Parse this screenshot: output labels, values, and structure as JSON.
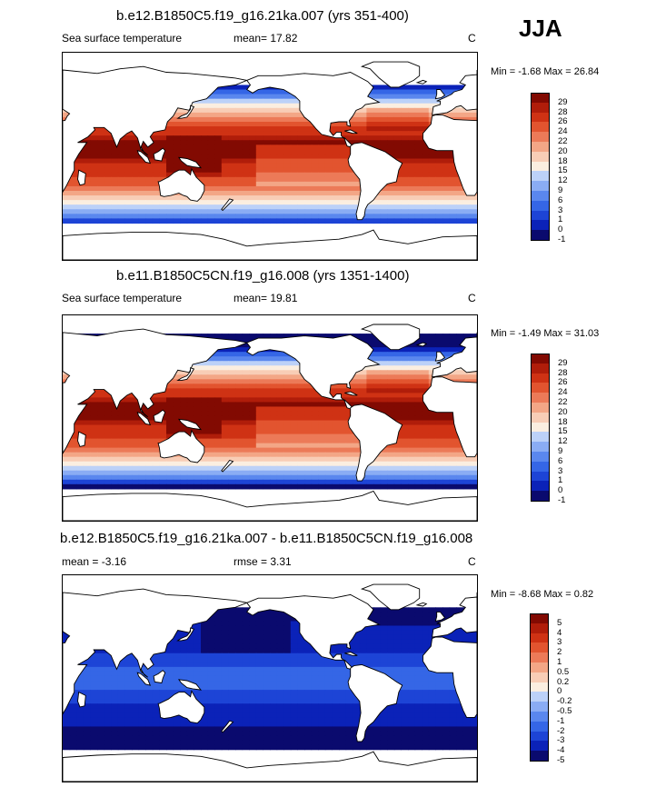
{
  "season": "JJA",
  "panels": [
    {
      "title": "b.e12.B1850C5.f19_g16.21ka.007 (yrs 351-400)",
      "left_label": "Sea surface temperature",
      "stat_label": "mean=  17.82",
      "units": "C",
      "minmax": "Min =  -1.68 Max =  26.84",
      "scale": "abs",
      "colorbar_labels": [
        "29",
        "28",
        "26",
        "24",
        "22",
        "20",
        "18",
        "15",
        "12",
        "9",
        "6",
        "3",
        "1",
        "0",
        "-1"
      ]
    },
    {
      "title": "b.e11.B1850C5CN.f19_g16.008 (yrs 1351-1400)",
      "left_label": "Sea surface temperature",
      "stat_label": "mean=  19.81",
      "units": "C",
      "minmax": "Min =  -1.49 Max =  31.03",
      "scale": "abs",
      "colorbar_labels": [
        "29",
        "28",
        "26",
        "24",
        "22",
        "20",
        "18",
        "15",
        "12",
        "9",
        "6",
        "3",
        "1",
        "0",
        "-1"
      ]
    },
    {
      "title": "b.e12.B1850C5.f19_g16.21ka.007 - b.e11.B1850C5CN.f19_g16.008",
      "left_label": "mean =  -3.16",
      "stat_label": "rmse =   3.31",
      "units": "C",
      "minmax": "Min =  -8.68 Max =   0.82",
      "scale": "diff",
      "colorbar_labels": [
        "5",
        "4",
        "3",
        "2",
        "1",
        "0.5",
        "0.2",
        "0",
        "-0.2",
        "-0.5",
        "-1",
        "-2",
        "-3",
        "-4",
        "-5"
      ]
    }
  ],
  "palette": [
    "#0a0a6e",
    "#0b22b8",
    "#1d44d6",
    "#3566e6",
    "#5a87ee",
    "#8aacf4",
    "#bcd1f8",
    "#fbeee0",
    "#f8cdb6",
    "#f3a686",
    "#ec7a58",
    "#e2542f",
    "#cf3214",
    "#b01d0a",
    "#820a02"
  ]
}
